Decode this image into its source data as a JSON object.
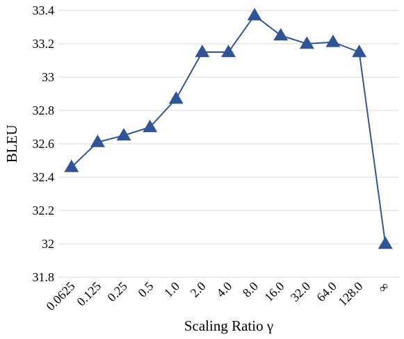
{
  "chart_data": {
    "type": "line",
    "title": "",
    "xlabel": "Scaling Ratio γ",
    "ylabel": "BLEU",
    "categories": [
      "0.0625",
      "0.125",
      "0.25",
      "0.5",
      "1.0",
      "2.0",
      "4.0",
      "8.0",
      "16.0",
      "32.0",
      "64.0",
      "128.0",
      "∞"
    ],
    "series": [
      {
        "values": [
          32.46,
          32.61,
          32.65,
          32.7,
          32.87,
          33.15,
          33.15,
          33.37,
          33.25,
          33.2,
          33.21,
          33.15,
          32.0
        ],
        "color": "#2f5597",
        "marker": "triangle"
      }
    ],
    "ylim": [
      31.8,
      33.4
    ],
    "yticks": [
      31.8,
      32.0,
      32.2,
      32.4,
      32.6,
      32.8,
      33.0,
      33.2,
      33.4
    ],
    "ytick_labels": [
      "31.8",
      "32",
      "32.2",
      "32.4",
      "32.6",
      "32.8",
      "33",
      "33.2",
      "33.4"
    ],
    "grid": "horizontal",
    "legend": "none"
  }
}
